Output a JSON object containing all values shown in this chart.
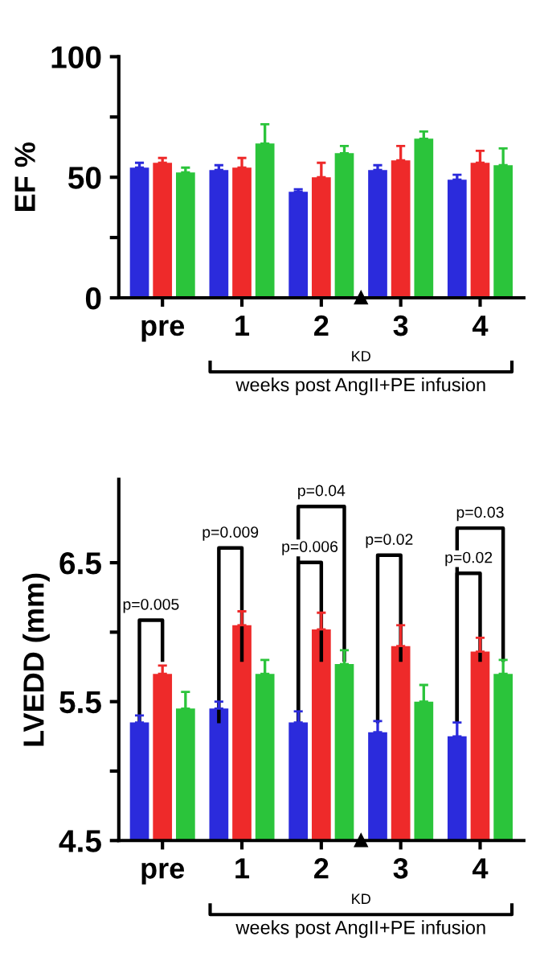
{
  "chart_data": [
    {
      "type": "bar",
      "ylabel": "EF %",
      "xlabel": "weeks post AngII+PE infusion",
      "categories": [
        "pre",
        "1",
        "2",
        "3",
        "4"
      ],
      "series": [
        {
          "color": "#2b2bdc",
          "values": [
            54,
            53,
            44,
            53,
            49
          ],
          "errors": [
            2,
            2,
            1,
            2,
            2
          ]
        },
        {
          "color": "#ee2a2a",
          "values": [
            56,
            54,
            50,
            57,
            56
          ],
          "errors": [
            2,
            4,
            6,
            6,
            5
          ]
        },
        {
          "color": "#2bc43b",
          "values": [
            52,
            64,
            60,
            66,
            55
          ],
          "errors": [
            2,
            8,
            3,
            3,
            7
          ]
        }
      ],
      "ylim": [
        0,
        100
      ],
      "yticks": [
        0,
        {
          "value": 25,
          "label": null
        },
        50,
        {
          "value": 75,
          "label": null
        },
        100
      ],
      "annotations": [
        "KD"
      ],
      "grid": false,
      "legend": false
    },
    {
      "type": "bar",
      "ylabel": "LVEDD (mm)",
      "xlabel": "weeks post AngII+PE infusion",
      "categories": [
        "pre",
        "1",
        "2",
        "3",
        "4"
      ],
      "series": [
        {
          "color": "#2b2bdc",
          "values": [
            5.35,
            5.45,
            5.35,
            5.28,
            5.25
          ],
          "errors": [
            0.05,
            0.05,
            0.08,
            0.08,
            0.1
          ]
        },
        {
          "color": "#ee2a2a",
          "values": [
            5.7,
            6.05,
            6.02,
            5.9,
            5.86
          ],
          "errors": [
            0.06,
            0.1,
            0.12,
            0.15,
            0.1
          ]
        },
        {
          "color": "#2bc43b",
          "values": [
            5.45,
            5.7,
            5.77,
            5.5,
            5.7
          ],
          "errors": [
            0.12,
            0.1,
            0.1,
            0.12,
            0.1
          ]
        }
      ],
      "ylim": [
        4.5,
        7.1
      ],
      "yticks": [
        4.5,
        {
          "value": 5.0,
          "label": null
        },
        5.5,
        {
          "value": 6.0,
          "label": null
        },
        6.5
      ],
      "annotations": [
        "KD",
        "p=0.005",
        "p=0.009",
        "p=0.006",
        "p=0.04",
        "p=0.02",
        "p=0.02",
        "p=0.03"
      ],
      "grid": false,
      "legend": false
    }
  ]
}
